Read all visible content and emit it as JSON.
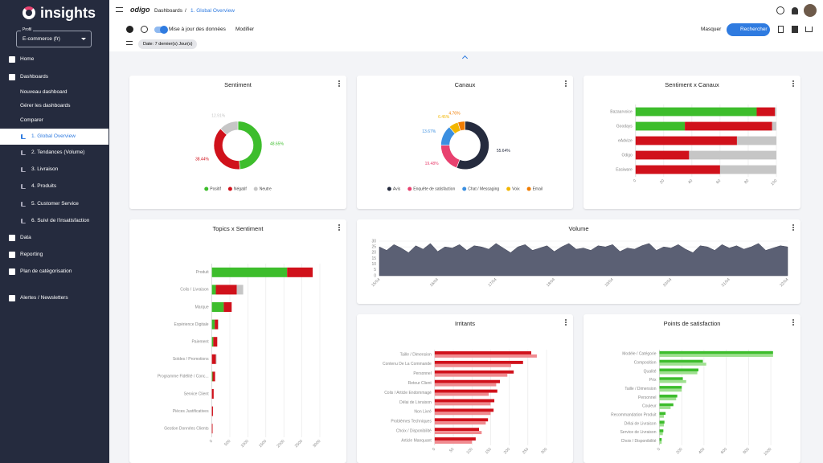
{
  "sidebar": {
    "logo": "insights",
    "profile_label": "Profil",
    "profile": "E-commerce (fr)",
    "nav": [
      "Home",
      "Dashboards",
      "Nouveau dashboard",
      "Gérer les dashboards",
      "Comparer",
      "1. Global Overview",
      "2. Tendances (Volume)",
      "3. Livraison",
      "4. Produits",
      "5. Customer Service",
      "6. Suivi de l'insatisfaction",
      "Data",
      "Reporting",
      "Plan de catégorisation",
      "Alertes / Newsletters"
    ]
  },
  "topbar": {
    "brand": "odigo",
    "breadcrumb": [
      "Dashboards",
      "1. Global Overview"
    ],
    "breadcrumb_sep": "/",
    "toggle": "Mise à jour des données",
    "edit": "Modifier",
    "hide": "Masquer",
    "search": "Rechercher",
    "date_chip": "Date: 7 dernier(s) Jour(s)"
  },
  "chart_data": [
    {
      "type": "donut",
      "title": "Sentiment",
      "categories": [
        "Positif",
        "Négatif",
        "Neutre"
      ],
      "values": [
        48.65,
        38.44,
        12.91
      ],
      "value_labels": [
        "48.65%",
        "38.44%",
        "12.91%"
      ],
      "colors": [
        "#3dbd2c",
        "#d0111b",
        "#c6c6c6"
      ]
    },
    {
      "type": "donut",
      "title": "Canaux",
      "categories": [
        "Avis",
        "Enquête de satisfaction",
        "Chat / Messaging",
        "Voix",
        "Email"
      ],
      "values": [
        55.64,
        19.48,
        13.67,
        6.45,
        4.76
      ],
      "value_labels": [
        "55.64%",
        "19.48%",
        "13.67%",
        "6.45%",
        "4.76%"
      ],
      "colors": [
        "#252b3e",
        "#e8416f",
        "#3b8fe0",
        "#f2b600",
        "#f07c00"
      ]
    },
    {
      "type": "hbar_stacked",
      "title": "Sentiment x Canaux",
      "categories": [
        "Bazaarvoice",
        "Goodays",
        "eAdvize",
        "Odigo",
        "Easiware"
      ],
      "series": [
        {
          "name": "Positif",
          "color": "#3dbd2c",
          "values": [
            86,
            35,
            0,
            0,
            0
          ]
        },
        {
          "name": "Négatif",
          "color": "#d0111b",
          "values": [
            13,
            62,
            72,
            38,
            60
          ]
        },
        {
          "name": "Neutre",
          "color": "#c6c6c6",
          "values": [
            1,
            3,
            28,
            62,
            40
          ]
        }
      ],
      "xlim": [
        0,
        100
      ],
      "xticks": [
        0,
        20,
        40,
        60,
        80,
        100
      ]
    },
    {
      "type": "hbar_stacked",
      "title": "Topics x Sentiment",
      "categories": [
        "Produit",
        "Colis / Livraison",
        "Marque",
        "Expérience Digitale",
        "Paiement",
        "Soldes / Promotions",
        "Programme Fidélité / Conc...",
        "Service Client",
        "Pièces Justificatives",
        "Gestion Données Clients"
      ],
      "series": [
        {
          "name": "Positif",
          "color": "#3dbd2c",
          "values": [
            2090,
            110,
            330,
            80,
            40,
            0,
            20,
            0,
            0,
            0
          ]
        },
        {
          "name": "Négatif",
          "color": "#d0111b",
          "values": [
            710,
            580,
            220,
            90,
            110,
            110,
            70,
            50,
            30,
            20
          ]
        },
        {
          "name": "Neutre",
          "color": "#c6c6c6",
          "values": [
            0,
            180,
            0,
            20,
            0,
            20,
            0,
            0,
            0,
            0
          ]
        }
      ],
      "xlim": [
        0,
        3000
      ],
      "xticks": [
        0,
        500,
        1000,
        1500,
        2000,
        2500,
        3000
      ]
    },
    {
      "type": "area",
      "title": "Volume",
      "color": "#5b6074",
      "categories": [
        "15/04",
        null,
        null,
        null,
        null,
        null,
        null,
        null,
        "16/04",
        null,
        null,
        null,
        null,
        null,
        null,
        null,
        "17/04",
        null,
        null,
        null,
        null,
        null,
        null,
        null,
        "18/04",
        null,
        null,
        null,
        null,
        null,
        null,
        null,
        "19/04",
        null,
        null,
        null,
        null,
        null,
        null,
        null,
        "20/04",
        null,
        null,
        null,
        null,
        null,
        null,
        null,
        "21/04",
        null,
        null,
        null,
        null,
        null,
        null,
        null,
        "22/04"
      ],
      "values": [
        25,
        22,
        27,
        24,
        20,
        26,
        23,
        28,
        21,
        25,
        24,
        27,
        22,
        26,
        25,
        23,
        28,
        24,
        20,
        25,
        27,
        22,
        24,
        26,
        21,
        25,
        28,
        23,
        24,
        22,
        26,
        25,
        27,
        21,
        24,
        23,
        26,
        28,
        22,
        25,
        24,
        27,
        23,
        20,
        26,
        25,
        22,
        27,
        24,
        26,
        23,
        25,
        28,
        22,
        24,
        26,
        25
      ],
      "ylim": [
        0,
        30
      ],
      "yticks": [
        0,
        5,
        10,
        15,
        20,
        25,
        30
      ]
    },
    {
      "type": "hbar",
      "title": "Irritants",
      "categories": [
        "Taille / Dimension",
        "Contenu De La Commande",
        "Personnel",
        "Retour Client",
        "Colis / Article Endommagé",
        "Délai de Livraison",
        "Non Livré",
        "Problèmes Techniques",
        "Choix / Disponibilité",
        "Article Manquant"
      ],
      "series": [
        {
          "color": "#d0111b",
          "values": [
            259,
            237,
            212,
            175,
            168,
            160,
            158,
            143,
            119,
            110
          ]
        },
        {
          "color": "#f08a8f",
          "values": [
            274,
            205,
            195,
            165,
            145,
            150,
            150,
            137,
            126,
            100
          ]
        }
      ],
      "xlim": [
        0,
        300
      ],
      "xticks": [
        0,
        50,
        100,
        150,
        200,
        250,
        300
      ]
    },
    {
      "type": "hbar",
      "title": "Points de satisfaction",
      "categories": [
        "Modèle / Catégorie",
        "Composition",
        "Qualité",
        "Prix",
        "Taille / Dimension",
        "Personnel",
        "Couleur",
        "Recommandation Produit",
        "Délai de Livraison",
        "Service de Livraison",
        "Choix / Disponibilité"
      ],
      "series": [
        {
          "color": "#3dbd2c",
          "values": [
            1020,
            390,
            350,
            210,
            200,
            160,
            125,
            55,
            45,
            35,
            20
          ]
        },
        {
          "color": "#9ee08f",
          "values": [
            1020,
            420,
            340,
            240,
            200,
            150,
            100,
            40,
            40,
            30,
            20
          ]
        }
      ],
      "xlim": [
        0,
        1050
      ],
      "xticks": [
        0,
        200,
        400,
        600,
        800,
        1000
      ]
    }
  ]
}
